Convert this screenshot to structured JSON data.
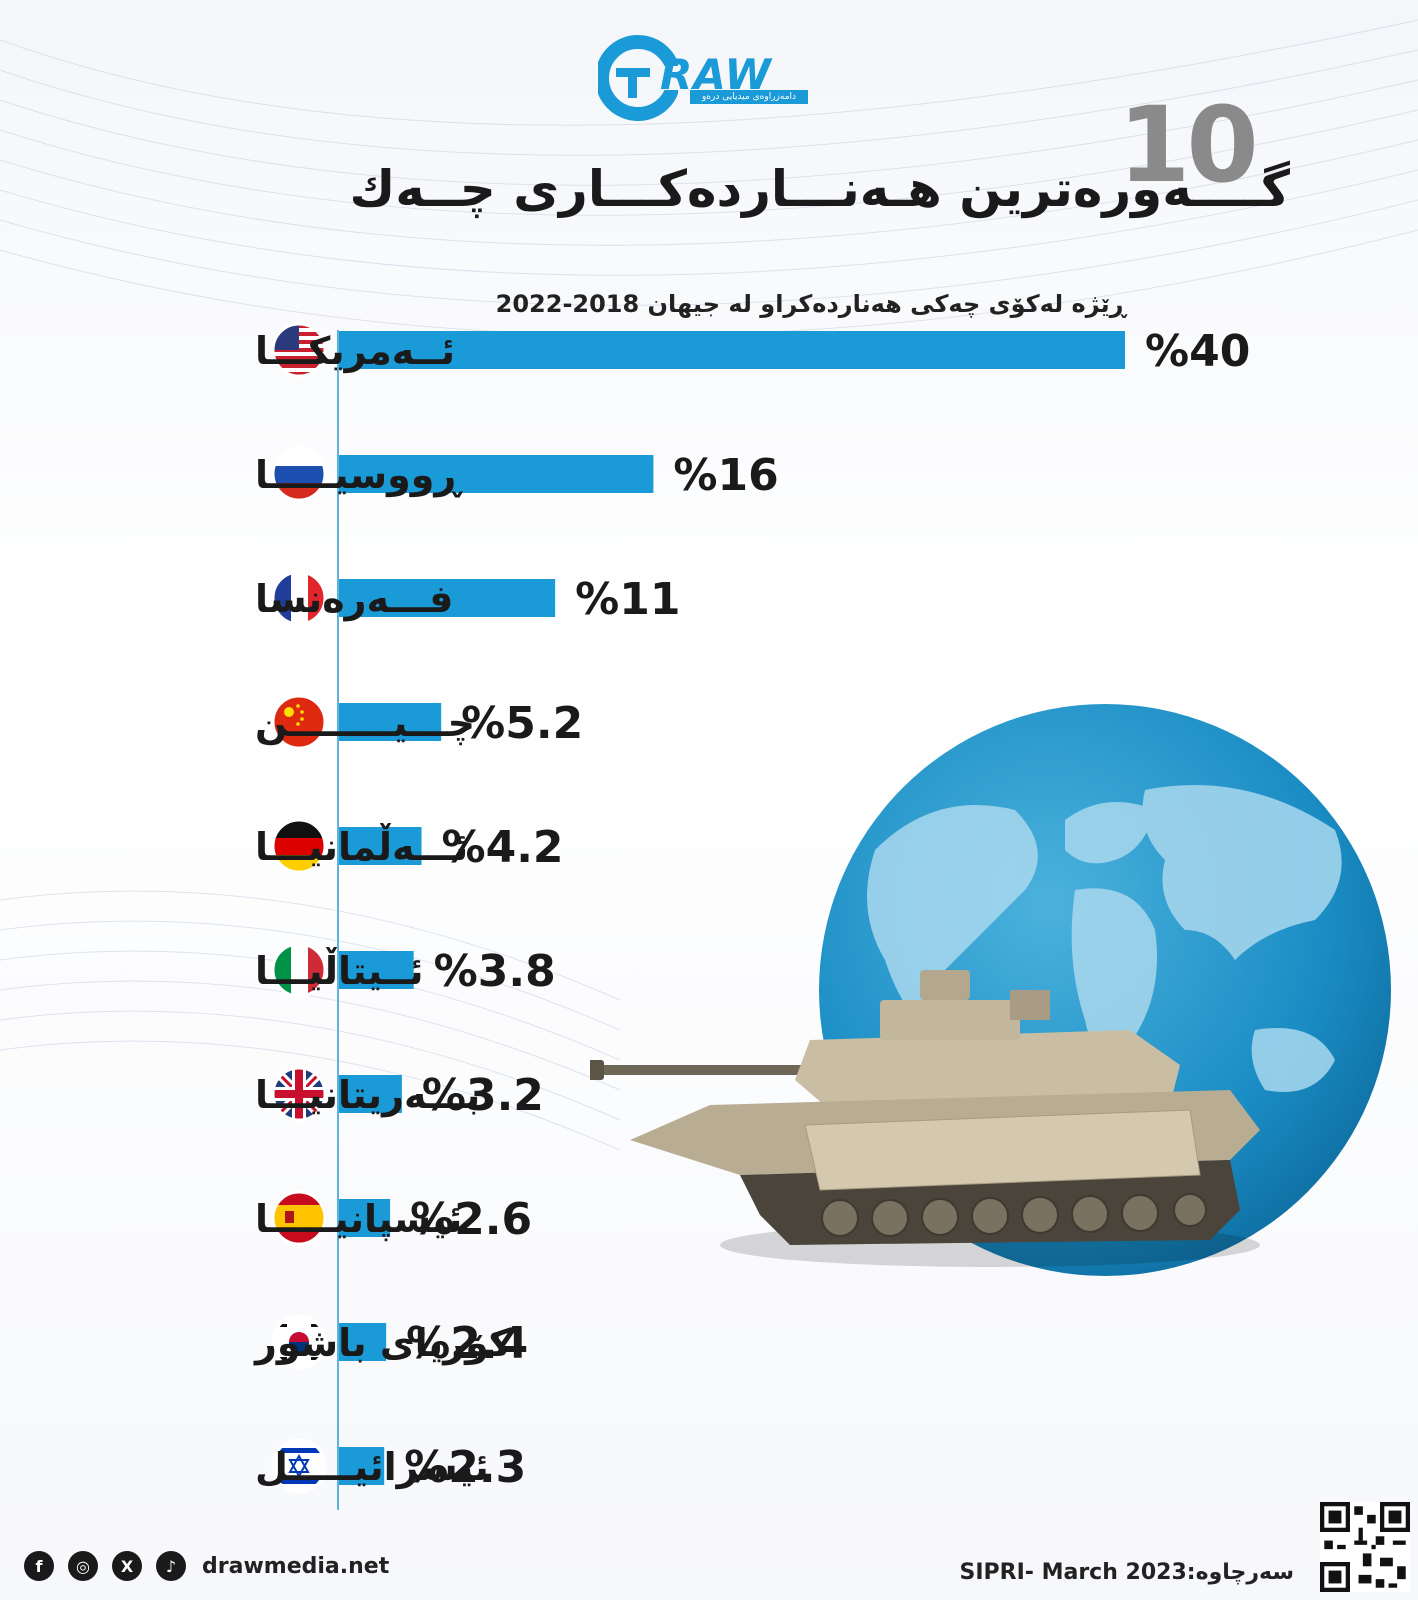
{
  "logo": {
    "text": "RAW",
    "tagline": "دامەزراوەی میدیایی درەو"
  },
  "title": {
    "number": "10",
    "text": "گــــەورەترین هـەنـــاردەکـــاری چــەك"
  },
  "chart_data": {
    "type": "bar",
    "orientation": "horizontal",
    "title": "ڕێژە لەکۆی چەکی هەناردەکراو لە جیهان 2018-2022",
    "value_prefix": "%",
    "categories": [
      "ئــەمریکـــا",
      "ڕووسیـــــا",
      "فـــەرەنسا",
      "چـــیــــــــن",
      "ئـــەڵمانیـــا",
      "ئــیتاڵیـــا",
      "بـــەریتانیـــا",
      "ئیسپانیـــــا",
      "کۆریای باشور",
      "ئیسرائیـــــل"
    ],
    "values": [
      40,
      16,
      11,
      5.2,
      4.2,
      3.8,
      3.2,
      2.6,
      2.4,
      2.3
    ],
    "value_labels": [
      "%40",
      "%16",
      "%11",
      "%5.2",
      "%4.2",
      "%3.8",
      "%3.2",
      "%2.6",
      "%2.4",
      "%2.3"
    ],
    "flags": [
      "usa",
      "russia",
      "france",
      "china",
      "germany",
      "italy",
      "uk",
      "spain",
      "south-korea",
      "israel"
    ],
    "xlim": [
      0,
      40
    ],
    "bar_color": "#1a9bd7"
  },
  "footer": {
    "social": [
      "f",
      "◎",
      "X",
      "♪"
    ],
    "social_names": [
      "facebook-icon",
      "instagram-icon",
      "x-icon",
      "tiktok-icon"
    ],
    "website": "drawmedia.net",
    "source": "SIPRI- March 2023:سەرچاوە"
  }
}
